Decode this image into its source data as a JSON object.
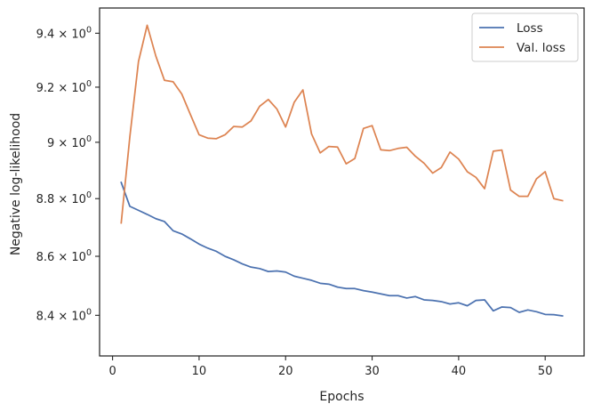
{
  "chart_data": {
    "type": "line",
    "title": "",
    "xlabel": "Epochs",
    "ylabel": "Negative log-likelihood",
    "xlim": [
      -1.5,
      54.5
    ],
    "ylim": [
      8.265,
      9.495
    ],
    "yscale": "log",
    "grid": false,
    "legend_position": "top-right",
    "x_ticks": [
      0,
      10,
      20,
      30,
      40,
      50
    ],
    "x_tick_labels": [
      "0",
      "10",
      "20",
      "30",
      "40",
      "50"
    ],
    "y_ticks": [
      8.4,
      8.6,
      8.8,
      9.0,
      9.2,
      9.4
    ],
    "y_tick_labels": [
      {
        "mantissa": "8.4",
        "base": "10",
        "exp": "0"
      },
      {
        "mantissa": "8.6",
        "base": "10",
        "exp": "0"
      },
      {
        "mantissa": "8.8",
        "base": "10",
        "exp": "0"
      },
      {
        "mantissa": "9",
        "base": "10",
        "exp": "0"
      },
      {
        "mantissa": "9.2",
        "base": "10",
        "exp": "0"
      },
      {
        "mantissa": "9.4",
        "base": "10",
        "exp": "0"
      }
    ],
    "x": [
      1,
      2,
      3,
      4,
      5,
      6,
      7,
      8,
      9,
      10,
      11,
      12,
      13,
      14,
      15,
      16,
      17,
      18,
      19,
      20,
      21,
      22,
      23,
      24,
      25,
      26,
      27,
      28,
      29,
      30,
      31,
      32,
      33,
      34,
      35,
      36,
      37,
      38,
      39,
      40,
      41,
      42,
      43,
      44,
      45,
      46,
      47,
      48,
      49,
      50,
      51,
      52
    ],
    "series": [
      {
        "name": "Loss",
        "color": "#4c72b0",
        "values": [
          8.857,
          8.773,
          8.759,
          8.745,
          8.73,
          8.72,
          8.688,
          8.677,
          8.66,
          8.642,
          8.628,
          8.617,
          8.6,
          8.588,
          8.574,
          8.563,
          8.558,
          8.548,
          8.55,
          8.546,
          8.532,
          8.525,
          8.518,
          8.508,
          8.505,
          8.495,
          8.49,
          8.49,
          8.483,
          8.478,
          8.472,
          8.466,
          8.466,
          8.458,
          8.463,
          8.452,
          8.45,
          8.446,
          8.438,
          8.442,
          8.432,
          8.45,
          8.452,
          8.415,
          8.428,
          8.426,
          8.41,
          8.418,
          8.412,
          8.403,
          8.402,
          8.398
        ]
      },
      {
        "name": "Val. loss",
        "color": "#dd8452",
        "values": [
          8.715,
          9.02,
          9.295,
          9.43,
          9.315,
          9.225,
          9.22,
          9.175,
          9.1,
          9.027,
          9.015,
          9.013,
          9.027,
          9.057,
          9.055,
          9.077,
          9.13,
          9.155,
          9.12,
          9.055,
          9.145,
          9.19,
          9.03,
          8.962,
          8.985,
          8.983,
          8.923,
          8.942,
          9.05,
          9.06,
          8.973,
          8.97,
          8.978,
          8.982,
          8.95,
          8.925,
          8.89,
          8.91,
          8.965,
          8.94,
          8.895,
          8.875,
          8.835,
          8.968,
          8.972,
          8.83,
          8.808,
          8.808,
          8.87,
          8.895,
          8.8,
          8.793
        ]
      }
    ]
  }
}
